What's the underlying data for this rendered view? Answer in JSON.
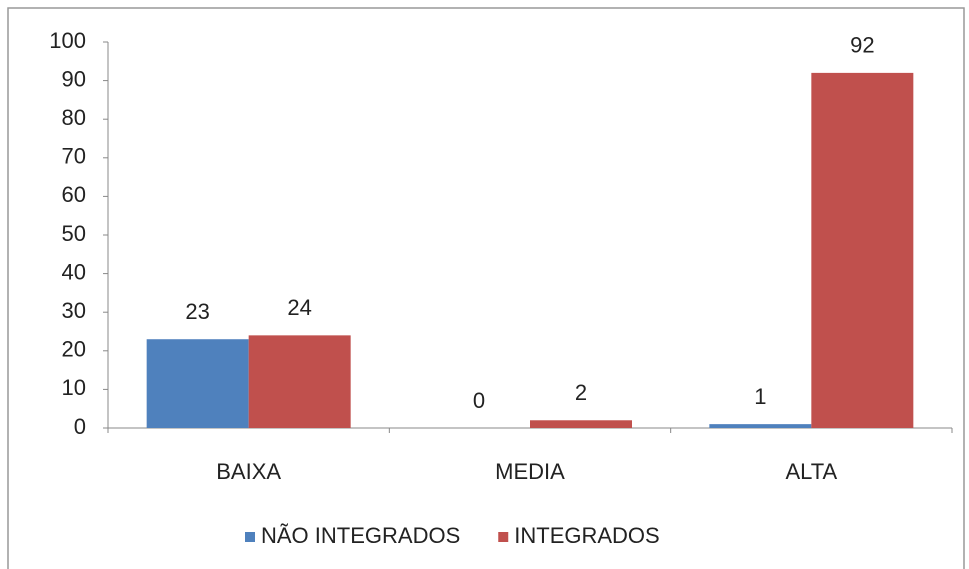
{
  "chart_data": {
    "type": "bar",
    "categories": [
      "BAIXA",
      "MEDIA",
      "ALTA"
    ],
    "series": [
      {
        "name": "NÃO INTEGRADOS",
        "color": "#4f81bd",
        "values": [
          23,
          0,
          1
        ]
      },
      {
        "name": "INTEGRADOS",
        "color": "#c0504d",
        "values": [
          24,
          2,
          92
        ]
      }
    ],
    "ylim": [
      0,
      100
    ],
    "yticks": [
      0,
      10,
      20,
      30,
      40,
      50,
      60,
      70,
      80,
      90,
      100
    ],
    "grid": false,
    "legend": "bottom"
  }
}
